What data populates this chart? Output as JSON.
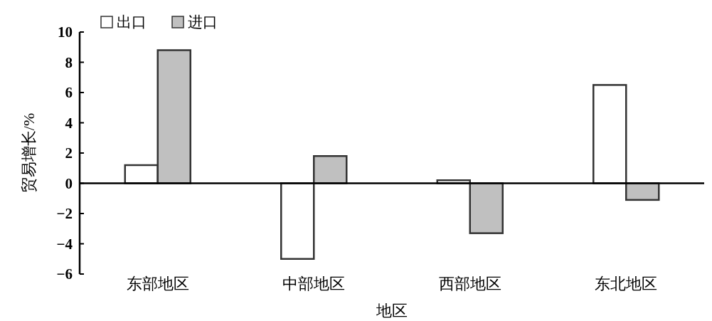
{
  "chart_data": {
    "type": "bar",
    "xlabel": "地区",
    "ylabel": "贸易增长/%",
    "categories": [
      "东部地区",
      "中部地区",
      "西部地区",
      "东北地区"
    ],
    "series": [
      {
        "name": "出口",
        "color": "#ffffff",
        "values": [
          1.2,
          -5.0,
          0.2,
          6.5
        ]
      },
      {
        "name": "进口",
        "color": "#c0c0c0",
        "values": [
          8.8,
          1.8,
          -3.3,
          -1.1
        ]
      }
    ],
    "ylim": [
      -6,
      10
    ],
    "yticks": [
      {
        "value": -6,
        "label": "−6"
      },
      {
        "value": -4,
        "label": "−4"
      },
      {
        "value": -2,
        "label": "−2"
      },
      0,
      2,
      4,
      6,
      8,
      10
    ],
    "legend": "top left"
  }
}
